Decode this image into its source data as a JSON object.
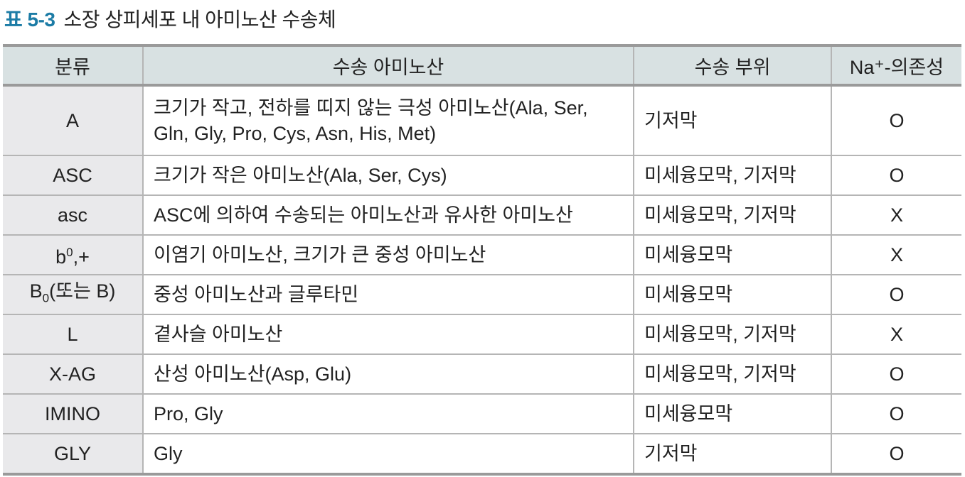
{
  "title": {
    "number": "표 5-3",
    "text": "소장 상피세포 내 아미노산 수송체"
  },
  "table": {
    "headers": [
      "분류",
      "수송 아미노산",
      "수송 부위",
      "Na⁺-의존성"
    ],
    "rows": [
      {
        "cls": "A",
        "sup": "",
        "sub": "",
        "rest": "",
        "amino": "크기가 작고, 전하를 띠지 않는 극성 아미노산(Ala, Ser, Gln, Gly, Pro, Cys, Asn, His, Met)",
        "site": "기저막",
        "na": "O"
      },
      {
        "cls": "ASC",
        "sup": "",
        "sub": "",
        "rest": "",
        "amino": "크기가 작은 아미노산(Ala, Ser, Cys)",
        "site": "미세융모막, 기저막",
        "na": "O"
      },
      {
        "cls": "asc",
        "sup": "",
        "sub": "",
        "rest": "",
        "amino": "ASC에 의하여 수송되는 아미노산과 유사한 아미노산",
        "site": "미세융모막, 기저막",
        "na": "X"
      },
      {
        "cls": "b",
        "sup": "0",
        "sub": "",
        "rest": ",+",
        "amino": "이염기 아미노산, 크기가 큰 중성 아미노산",
        "site": "미세융모막",
        "na": "X"
      },
      {
        "cls": "B",
        "sup": "",
        "sub": "0",
        "rest": "(또는 B)",
        "amino": "중성 아미노산과 글루타민",
        "site": "미세융모막",
        "na": "O"
      },
      {
        "cls": "L",
        "sup": "",
        "sub": "",
        "rest": "",
        "amino": "곁사슬 아미노산",
        "site": "미세융모막, 기저막",
        "na": "X"
      },
      {
        "cls": "X-AG",
        "sup": "",
        "sub": "",
        "rest": "",
        "amino": "산성 아미노산(Asp, Glu)",
        "site": "미세융모막, 기저막",
        "na": "O"
      },
      {
        "cls": "IMINO",
        "sup": "",
        "sub": "",
        "rest": "",
        "amino": "Pro, Gly",
        "site": "미세융모막",
        "na": "O"
      },
      {
        "cls": "GLY",
        "sup": "",
        "sub": "",
        "rest": "",
        "amino": "Gly",
        "site": "기저막",
        "na": "O"
      }
    ]
  }
}
